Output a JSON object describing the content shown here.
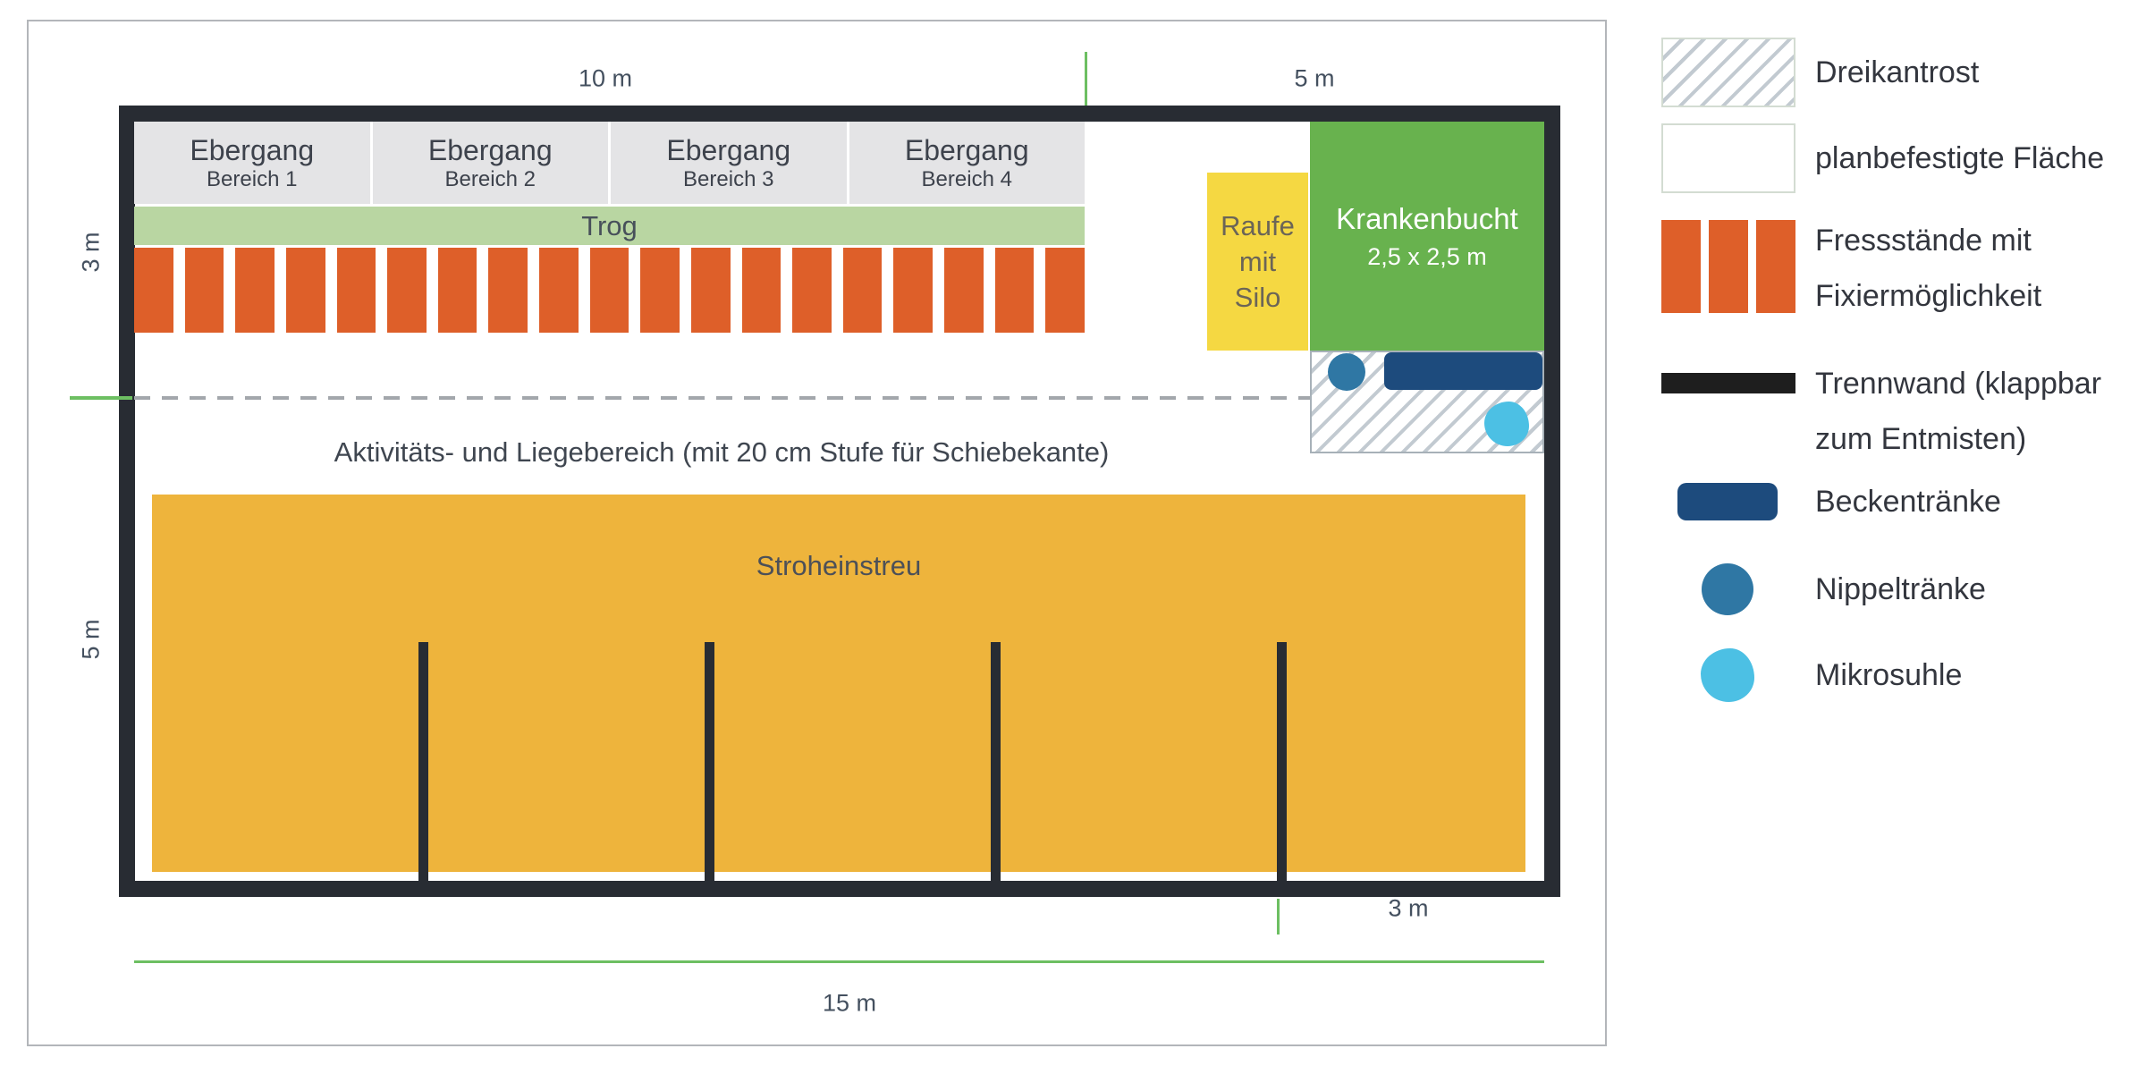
{
  "dimensions": {
    "top_width": "10 m",
    "top_right_width": "5 m",
    "left_upper_height": "3 m",
    "left_lower_height": "5 m",
    "bottom_right_width": "3 m",
    "bottom_width": "15 m"
  },
  "pen": {
    "ebergang_areas": [
      {
        "title": "Ebergang",
        "subtitle": "Bereich 1"
      },
      {
        "title": "Ebergang",
        "subtitle": "Bereich 2"
      },
      {
        "title": "Ebergang",
        "subtitle": "Bereich 3"
      },
      {
        "title": "Ebergang",
        "subtitle": "Bereich 4"
      }
    ],
    "trough_label": "Trog",
    "feeding_stalls_count": 19,
    "activity_area_label": "Aktivitäts- und Liegebereich (mit 20 cm Stufe für Schiebekante)",
    "straw_bedding_label": "Stroheinstreu",
    "hay_rack": {
      "line1": "Raufe",
      "line2": "mit",
      "line3": "Silo"
    },
    "sick_pen": {
      "title": "Krankenbucht",
      "size": "2,5 x 2,5 m"
    }
  },
  "legend": {
    "items": [
      {
        "id": "dreikantrost",
        "line1": "Dreikantrost"
      },
      {
        "id": "planbefestigte-flaeche",
        "line1": "planbefestigte Fläche"
      },
      {
        "id": "fressstaende",
        "line1": "Fressstände mit",
        "line2": "Fixiermöglichkeit"
      },
      {
        "id": "trennwand",
        "line1": "Trennwand (klappbar",
        "line2": "zum Entmisten)"
      },
      {
        "id": "beckentraenke",
        "line1": "Beckentränke"
      },
      {
        "id": "nippeltraenke",
        "line1": "Nippeltränke"
      },
      {
        "id": "mikrosuhle",
        "line1": "Mikrosuhle"
      }
    ]
  },
  "colors": {
    "wall_dark": "#282c33",
    "feeding_stall_orange": "#de5f29",
    "trough_green": "#b9d6a2",
    "sick_pen_green": "#68b24e",
    "rack_yellow": "#f5d842",
    "straw_amber": "#eeb43c",
    "basin_drinker_blue": "#1d4b7d",
    "nipple_drinker_blue": "#2f77a4",
    "wallow_light_blue": "#4cc0e4",
    "measure_green": "#6dbf62",
    "hatch_gray": "#c2cad1"
  }
}
